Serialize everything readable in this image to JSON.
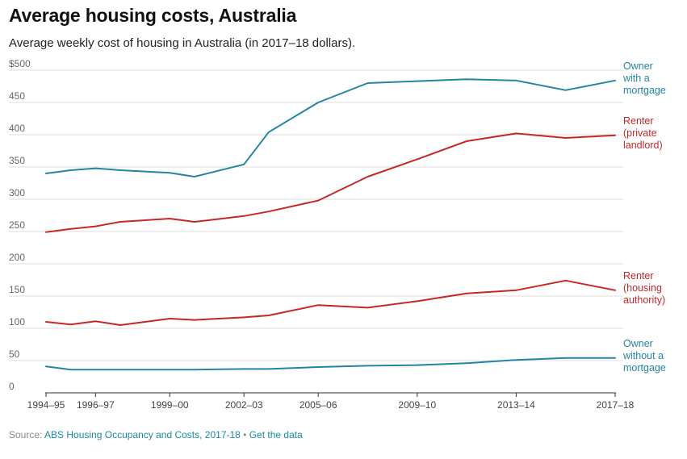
{
  "header": {
    "title": "Average housing costs, Australia",
    "subtitle": "Average weekly cost of housing in Australia (in 2017–18 dollars)."
  },
  "footer": {
    "source_prefix": "Source: ",
    "source_label": "ABS Housing Occupancy and Costs, 2017-18",
    "separator": " • ",
    "data_link": "Get the data"
  },
  "colors": {
    "owner": "#2385a3",
    "renter": "#c62828",
    "grid": "#dddddd",
    "axis": "#333333",
    "tick_text": "#666666"
  },
  "chart_data": {
    "type": "line",
    "title": "Average housing costs, Australia",
    "subtitle": "Average weekly cost of housing in Australia (in 2017–18 dollars).",
    "xlabel": "",
    "ylabel": "",
    "x": [
      1994.5,
      1995.5,
      1996.5,
      1997.5,
      1999.5,
      2000.5,
      2002.5,
      2003.5,
      2005.5,
      2007.5,
      2009.5,
      2011.5,
      2013.5,
      2015.5,
      2017.5
    ],
    "xlim": [
      1994.5,
      2017.5
    ],
    "x_ticks": [
      1994.5,
      1996.5,
      1999.5,
      2002.5,
      2005.5,
      2009.5,
      2013.5,
      2017.5
    ],
    "x_tick_labels": [
      "1994–95",
      "1996–97",
      "1999–00",
      "2002–03",
      "2005–06",
      "2009–10",
      "2013–14",
      "2017–18"
    ],
    "ylim": [
      0,
      500
    ],
    "y_ticks": [
      0,
      50,
      100,
      150,
      200,
      250,
      300,
      350,
      400,
      450,
      500
    ],
    "y_tick_labels": [
      "0",
      "50",
      "100",
      "150",
      "200",
      "250",
      "300",
      "350",
      "400",
      "450",
      "$500"
    ],
    "grid": true,
    "series": [
      {
        "name": "Owner with a mortgage",
        "label_lines": [
          "Owner",
          "with a",
          "mortgage"
        ],
        "color_key": "owner",
        "values": [
          340,
          345,
          348,
          345,
          341,
          335,
          354,
          404,
          450,
          480,
          483,
          486,
          484,
          469,
          484
        ]
      },
      {
        "name": "Renter (private landlord)",
        "label_lines": [
          "Renter",
          "(private",
          "landlord)"
        ],
        "color_key": "renter",
        "values": [
          249,
          254,
          258,
          265,
          270,
          265,
          274,
          281,
          298,
          335,
          362,
          390,
          402,
          395,
          399
        ]
      },
      {
        "name": "Renter (housing authority)",
        "label_lines": [
          "Renter",
          "(housing",
          "authority)"
        ],
        "color_key": "renter",
        "values": [
          110,
          106,
          111,
          105,
          115,
          113,
          117,
          120,
          136,
          132,
          142,
          154,
          159,
          174,
          159
        ]
      },
      {
        "name": "Owner without a mortgage",
        "label_lines": [
          "Owner",
          "without a",
          "mortgage"
        ],
        "color_key": "owner",
        "values": [
          41,
          36,
          36,
          36,
          36,
          36,
          37,
          37,
          40,
          42,
          43,
          46,
          51,
          54,
          54
        ]
      }
    ]
  }
}
